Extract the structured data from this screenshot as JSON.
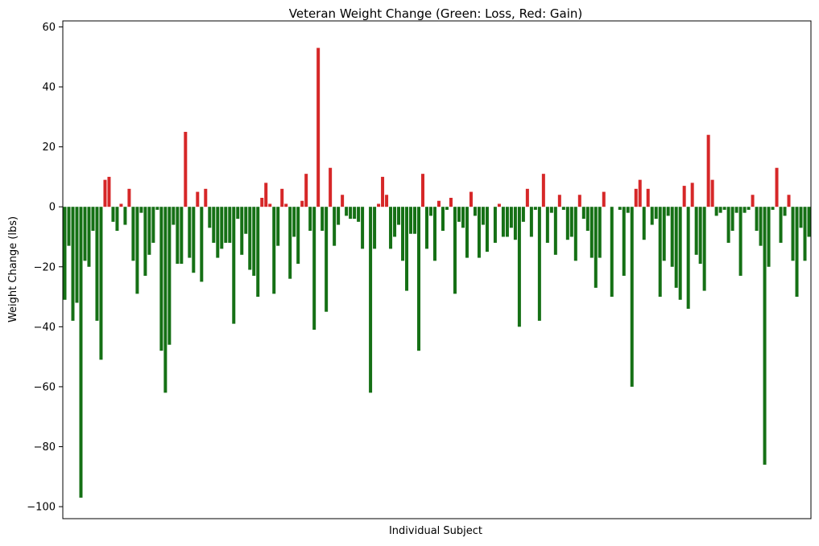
{
  "chart_data": {
    "type": "bar",
    "title": "Veteran Weight Change (Green: Loss, Red: Gain)",
    "xlabel": "Individual Subject",
    "ylabel": "Weight Change (lbs)",
    "ylim": [
      -104,
      62
    ],
    "yticks": [
      -100,
      -80,
      -60,
      -40,
      -20,
      0,
      20,
      40,
      60
    ],
    "ytick_labels": [
      "−100",
      "−80",
      "−60",
      "−40",
      "−20",
      "0",
      "20",
      "40",
      "60"
    ],
    "grid": false,
    "legend": "none",
    "colors": {
      "loss": "#157015",
      "gain": "#d62728"
    },
    "values": [
      -31,
      -13,
      -38,
      -32,
      -97,
      -18,
      -20,
      -8,
      -38,
      -51,
      9,
      10,
      -5,
      -8,
      1,
      -6,
      6,
      -18,
      -29,
      -2,
      -23,
      -16,
      -12,
      -1,
      -48,
      -62,
      -46,
      -6,
      -19,
      -19,
      25,
      -17,
      -22,
      5,
      -25,
      6,
      -7,
      -12,
      -17,
      -14,
      -12,
      -12,
      -39,
      -4,
      -16,
      -9,
      -21,
      -23,
      -30,
      3,
      8,
      1,
      -29,
      -13,
      6,
      1,
      -24,
      -10,
      -19,
      2,
      11,
      -8,
      -41,
      53,
      -8,
      -35,
      13,
      -13,
      -6,
      4,
      -3,
      -4,
      -4,
      -5,
      -14,
      0,
      -62,
      -14,
      1,
      10,
      4,
      -14,
      -10,
      -6,
      -18,
      -28,
      -9,
      -9,
      -48,
      11,
      -14,
      -3,
      -18,
      2,
      -8,
      -1,
      3,
      -29,
      -5,
      -7,
      -17,
      5,
      -3,
      -17,
      -6,
      -15,
      0,
      -12,
      1,
      -10,
      -10,
      -7,
      -11,
      -40,
      -5,
      6,
      -10,
      -1,
      -38,
      11,
      -12,
      -2,
      -16,
      4,
      -1,
      -11,
      -10,
      -18,
      4,
      -4,
      -8,
      -17,
      -27,
      -17,
      5,
      0,
      -30,
      0,
      -1,
      -23,
      -2,
      -60,
      6,
      9,
      -11,
      6,
      -6,
      -4,
      -30,
      -18,
      -3,
      -20,
      -27,
      -31,
      7,
      -34,
      8,
      -16,
      -19,
      -28,
      24,
      9,
      -3,
      -2,
      -1,
      -12,
      -8,
      -2,
      -23,
      -2,
      -1,
      4,
      -8,
      -13,
      -86,
      -20,
      -1,
      13,
      -12,
      -3,
      4,
      -18,
      -30,
      -7,
      -18,
      -10
    ]
  }
}
